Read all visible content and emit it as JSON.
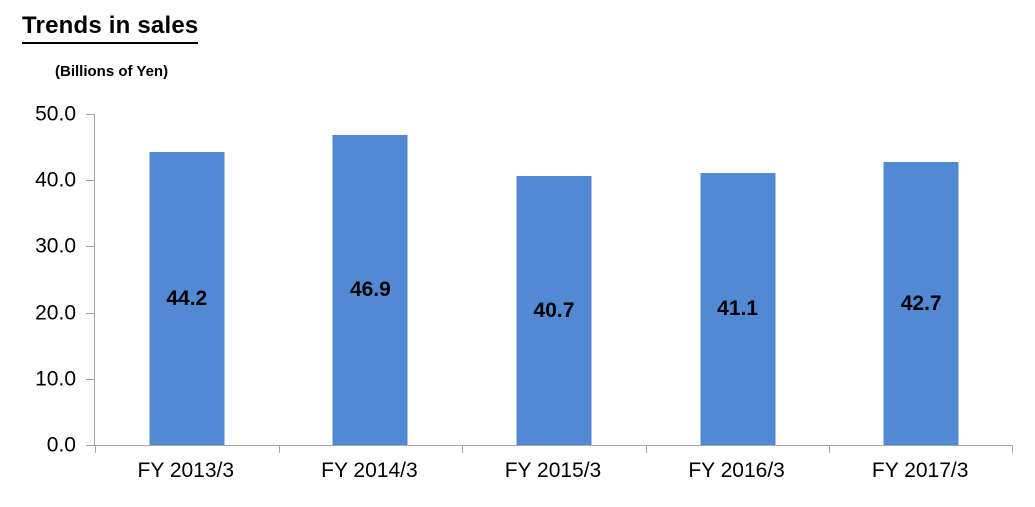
{
  "chart_data": {
    "type": "bar",
    "title": "Trends in sales",
    "unit_label": "(Billions of Yen)",
    "categories": [
      "FY 2013/3",
      "FY 2014/3",
      "FY 2015/3",
      "FY 2016/3",
      "FY 2017/3"
    ],
    "values": [
      44.2,
      46.9,
      40.7,
      41.1,
      42.7
    ],
    "value_labels": [
      "44.2",
      "46.9",
      "40.7",
      "41.1",
      "42.7"
    ],
    "ylim": [
      0,
      50
    ],
    "yticks": [
      0,
      10,
      20,
      30,
      40,
      50
    ],
    "ytick_labels": [
      "0.0",
      "10.0",
      "20.0",
      "30.0",
      "40.0",
      "50.0"
    ],
    "grid": false,
    "legend": "none",
    "value_label_position": "center-of-bar",
    "bar_color": "#5289D5",
    "axis_color": "#A6A6A6",
    "text_color": "#000000",
    "background_color": "#FFFFFF"
  }
}
